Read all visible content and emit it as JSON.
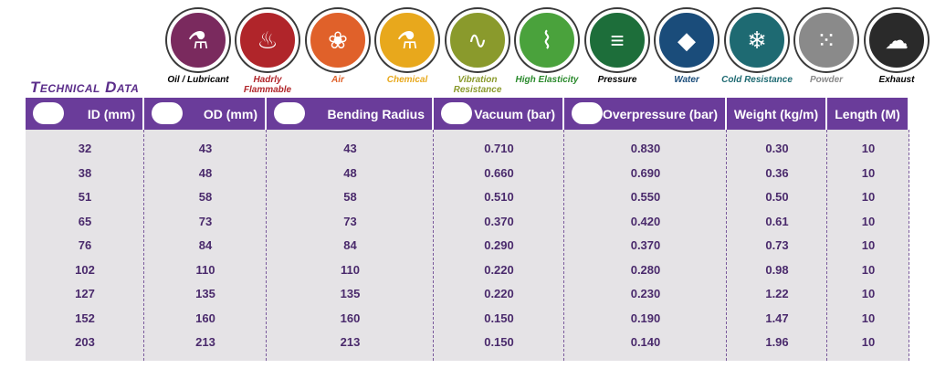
{
  "title": "Technical Data",
  "properties": [
    {
      "label": "Oil / Lubricant",
      "icon": "oil-drop-icon",
      "color": "#7a2a5e",
      "text_color": "#000000",
      "glyph": "⚗"
    },
    {
      "label": "Hadrly Flammable",
      "icon": "flame-icon",
      "color": "#b0252a",
      "text_color": "#b0252a",
      "glyph": "♨"
    },
    {
      "label": "Air",
      "icon": "fan-icon",
      "color": "#e0612a",
      "text_color": "#e0612a",
      "glyph": "❀"
    },
    {
      "label": "Chemical",
      "icon": "flask-icon",
      "color": "#e8a81c",
      "text_color": "#e8a81c",
      "glyph": "⚗"
    },
    {
      "label": "Vibration Resistance",
      "icon": "vibration-icon",
      "color": "#8a9a2c",
      "text_color": "#8a9a2c",
      "glyph": "∿"
    },
    {
      "label": "High Elasticity",
      "icon": "spring-icon",
      "color": "#4aa23c",
      "text_color": "#2a8a2c",
      "glyph": "⌇"
    },
    {
      "label": "Pressure",
      "icon": "pressure-gauge-icon",
      "color": "#1d6e3a",
      "text_color": "#000000",
      "glyph": "≡"
    },
    {
      "label": "Water",
      "icon": "water-drop-icon",
      "color": "#1a4c7a",
      "text_color": "#1a4c7a",
      "glyph": "◆"
    },
    {
      "label": "Cold Resistance",
      "icon": "snowflake-icon",
      "color": "#1e6a72",
      "text_color": "#1e6a72",
      "glyph": "❄"
    },
    {
      "label": "Powder",
      "icon": "powder-icon",
      "color": "#8a8a8a",
      "text_color": "#8a8a8a",
      "glyph": "⁙"
    },
    {
      "label": "Exhaust",
      "icon": "exhaust-pipe-icon",
      "color": "#2a2a2a",
      "text_color": "#000000",
      "glyph": "☁"
    }
  ],
  "columns": [
    {
      "label": "ID (mm)",
      "icon": "inner-diameter-icon"
    },
    {
      "label": "OD (mm)",
      "icon": "outer-diameter-icon"
    },
    {
      "label": "Bending Radius",
      "icon": "bending-radius-icon"
    },
    {
      "label": "Vacuum (bar)",
      "icon": "vacuum-icon"
    },
    {
      "label": "Overpressure (bar)",
      "icon": "overpressure-icon"
    },
    {
      "label": "Weight (kg/m)",
      "icon": ""
    },
    {
      "label": "Length (M)",
      "icon": ""
    }
  ],
  "rows": [
    [
      "32",
      "43",
      "43",
      "0.710",
      "0.830",
      "0.30",
      "10"
    ],
    [
      "38",
      "48",
      "48",
      "0.660",
      "0.690",
      "0.36",
      "10"
    ],
    [
      "51",
      "58",
      "58",
      "0.510",
      "0.550",
      "0.50",
      "10"
    ],
    [
      "65",
      "73",
      "73",
      "0.370",
      "0.420",
      "0.61",
      "10"
    ],
    [
      "76",
      "84",
      "84",
      "0.290",
      "0.370",
      "0.73",
      "10"
    ],
    [
      "102",
      "110",
      "110",
      "0.220",
      "0.280",
      "0.98",
      "10"
    ],
    [
      "127",
      "135",
      "135",
      "0.220",
      "0.230",
      "1.22",
      "10"
    ],
    [
      "152",
      "160",
      "160",
      "0.150",
      "0.190",
      "1.47",
      "10"
    ],
    [
      "203",
      "213",
      "213",
      "0.150",
      "0.140",
      "1.96",
      "10"
    ]
  ]
}
